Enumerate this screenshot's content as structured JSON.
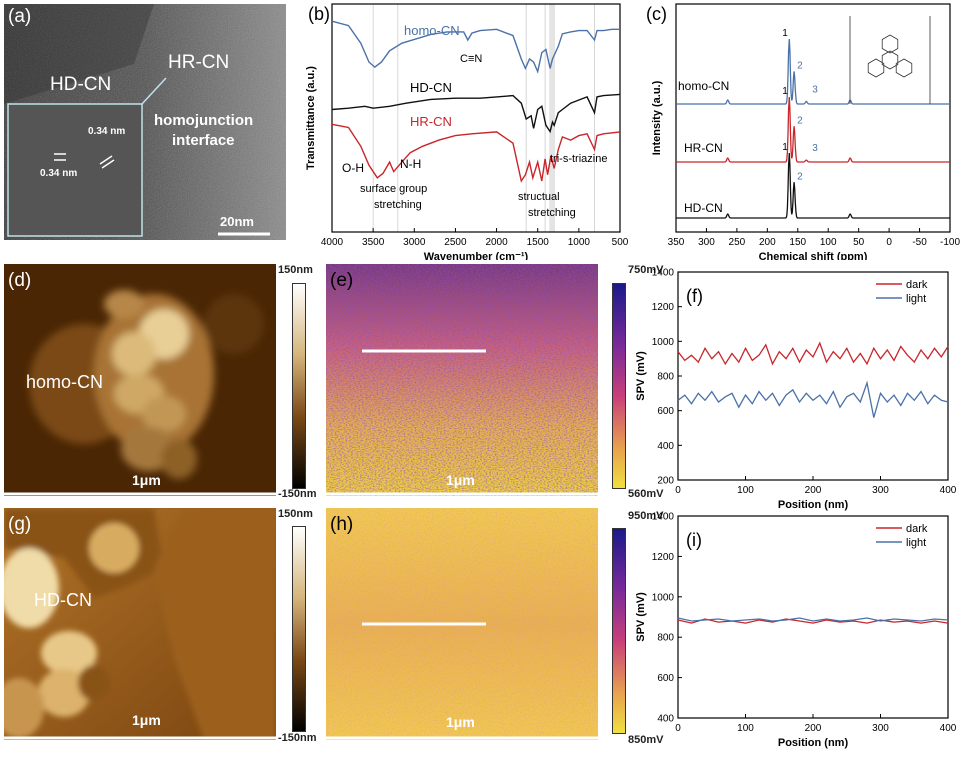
{
  "panels": {
    "a": {
      "label": "(a)",
      "texts": {
        "hd": "HD-CN",
        "hr": "HR-CN",
        "interface1": "homojunction",
        "interface2": "interface",
        "d1": "0.34 nm",
        "d2": "0.34 nm",
        "scale": "20nm"
      }
    },
    "b": {
      "label": "(b)",
      "texts": {
        "homo": "homo-CN",
        "cn": "C≡N",
        "hd": "HD-CN",
        "hr": "HR-CN",
        "oh": "O-H",
        "nh": "N-H",
        "surf1": "surface group",
        "surf2": "stretching",
        "struct1": "structual",
        "struct2": "stretching",
        "triazine": "tri-s-triazine"
      }
    },
    "c": {
      "label": "(c)",
      "texts": {
        "homo": "homo-CN",
        "hr": "HR-CN",
        "hd": "HD-CN"
      }
    },
    "d": {
      "label": "(d)",
      "sample": "homo-CN",
      "scale": "1μm",
      "cbar_top": "150nm",
      "cbar_bottom": "-150nm"
    },
    "e": {
      "label": "(e)",
      "scale": "1μm",
      "cbar_top": "750mV",
      "cbar_bottom": "560mV"
    },
    "g": {
      "label": "(g)",
      "sample": "HD-CN",
      "scale": "1μm",
      "cbar_top": "150nm",
      "cbar_bottom": "-150nm"
    },
    "h": {
      "label": "(h)",
      "scale": "1μm",
      "cbar_top": "950mV",
      "cbar_bottom": "850mV"
    }
  },
  "colors": {
    "blue": "#4a72a8",
    "red": "#c8262a",
    "black": "#111111",
    "gold": "#e6c645",
    "purple": "#3a1a8a"
  },
  "chart_data": [
    {
      "id": "b",
      "type": "line",
      "label": "(b)",
      "xlabel": "Wavenumber (cm⁻¹)",
      "ylabel": "Transmittance (a.u.)",
      "xlim": [
        4000,
        500
      ],
      "xticks": [
        4000,
        3500,
        3000,
        2500,
        2000,
        1500,
        1000,
        500
      ],
      "series": [
        {
          "name": "homo-CN",
          "color": "#4a72a8",
          "offset": 1.0,
          "x": [
            4000,
            3800,
            3650,
            3550,
            3480,
            3400,
            3300,
            3150,
            3000,
            2800,
            2600,
            2400,
            2350,
            2300,
            2200,
            2000,
            1800,
            1700,
            1650,
            1600,
            1550,
            1500,
            1450,
            1400,
            1350,
            1320,
            1250,
            1200,
            1100,
            1000,
            900,
            810,
            780,
            700,
            600,
            500
          ],
          "y": [
            0.95,
            0.88,
            0.6,
            0.3,
            0.22,
            0.3,
            0.48,
            0.6,
            0.66,
            0.74,
            0.78,
            0.78,
            0.65,
            0.76,
            0.8,
            0.82,
            0.72,
            0.35,
            0.2,
            0.35,
            0.3,
            0.15,
            0.45,
            0.5,
            0.2,
            0.35,
            0.55,
            0.75,
            0.78,
            0.8,
            0.8,
            0.65,
            0.8,
            0.8,
            0.82,
            0.82
          ]
        },
        {
          "name": "HD-CN",
          "color": "#111111",
          "offset": 0.0,
          "x": [
            4000,
            3800,
            3600,
            3500,
            3300,
            3100,
            3000,
            2800,
            2500,
            2200,
            2000,
            1800,
            1700,
            1640,
            1580,
            1550,
            1500,
            1450,
            1400,
            1350,
            1320,
            1300,
            1250,
            1200,
            1100,
            1000,
            900,
            810,
            780,
            700,
            500
          ],
          "y": [
            0.5,
            0.52,
            0.55,
            0.52,
            0.55,
            0.6,
            0.62,
            0.66,
            0.68,
            0.68,
            0.7,
            0.72,
            0.6,
            0.35,
            0.4,
            0.2,
            0.5,
            0.55,
            0.25,
            0.15,
            0.3,
            0.25,
            0.45,
            0.5,
            0.6,
            0.65,
            0.7,
            0.45,
            0.7,
            0.72,
            0.74
          ]
        },
        {
          "name": "HR-CN",
          "color": "#c8262a",
          "offset": -1.0,
          "x": [
            4000,
            3800,
            3650,
            3550,
            3450,
            3380,
            3300,
            3250,
            3150,
            3050,
            2900,
            2700,
            2500,
            2300,
            2000,
            1800,
            1700,
            1650,
            1600,
            1560,
            1500,
            1450,
            1410,
            1380,
            1340,
            1300,
            1250,
            1200,
            1100,
            1000,
            900,
            810,
            780,
            700,
            500
          ],
          "y": [
            0.9,
            0.85,
            0.55,
            0.25,
            0.05,
            0.12,
            0.3,
            0.15,
            0.3,
            0.45,
            0.55,
            0.65,
            0.72,
            0.75,
            0.78,
            0.6,
            0.0,
            0.1,
            0.3,
            0.05,
            0.3,
            0.0,
            0.35,
            0.1,
            0.4,
            0.2,
            0.5,
            0.7,
            0.65,
            0.72,
            0.75,
            0.5,
            0.72,
            0.75,
            0.78
          ]
        }
      ]
    },
    {
      "id": "c",
      "type": "line",
      "label": "(c)",
      "xlabel": "Chemical shift (ppm)",
      "ylabel": "Intensity (a.u.)",
      "xlim": [
        350,
        -100
      ],
      "xticks": [
        350,
        300,
        250,
        200,
        150,
        100,
        50,
        0,
        -50,
        -100
      ],
      "series": [
        {
          "name": "homo-CN",
          "color": "#4a72a8",
          "offset": 2.0,
          "peaks": [
            {
              "x": 265,
              "h": 0.06
            },
            {
              "x": 164,
              "h": 1.0,
              "label": "1"
            },
            {
              "x": 156,
              "h": 0.5,
              "label": "2"
            },
            {
              "x": 136,
              "h": 0.04,
              "label": "3"
            },
            {
              "x": 64,
              "h": 0.06
            }
          ]
        },
        {
          "name": "HR-CN",
          "color": "#c8262a",
          "offset": 1.0,
          "peaks": [
            {
              "x": 265,
              "h": 0.06
            },
            {
              "x": 164,
              "h": 1.0,
              "label": "1"
            },
            {
              "x": 156,
              "h": 0.55,
              "label": "2"
            },
            {
              "x": 136,
              "h": 0.03,
              "label": "3"
            },
            {
              "x": 64,
              "h": 0.06
            }
          ]
        },
        {
          "name": "HD-CN",
          "color": "#111111",
          "offset": 0.0,
          "peaks": [
            {
              "x": 265,
              "h": 0.06
            },
            {
              "x": 164,
              "h": 1.0,
              "label": "1"
            },
            {
              "x": 156,
              "h": 0.55,
              "label": "2"
            },
            {
              "x": 64,
              "h": 0.06
            }
          ]
        }
      ]
    },
    {
      "id": "f",
      "type": "line",
      "label": "(f)",
      "xlabel": "Position (nm)",
      "ylabel": "SPV (mV)",
      "xlim": [
        0,
        400
      ],
      "ylim": [
        200,
        1400
      ],
      "xticks": [
        0,
        100,
        200,
        300,
        400
      ],
      "yticks": [
        200,
        400,
        600,
        800,
        1000,
        1200,
        1400
      ],
      "legend": "top-right",
      "series": [
        {
          "name": "dark",
          "color": "#c8262a",
          "x": [
            0,
            10,
            20,
            30,
            40,
            50,
            60,
            70,
            80,
            90,
            100,
            110,
            120,
            130,
            140,
            150,
            160,
            170,
            180,
            190,
            200,
            210,
            220,
            230,
            240,
            250,
            260,
            270,
            280,
            290,
            300,
            310,
            320,
            330,
            340,
            350,
            360,
            370,
            380,
            390,
            400
          ],
          "y": [
            940,
            890,
            920,
            880,
            960,
            900,
            940,
            870,
            930,
            880,
            960,
            890,
            920,
            980,
            870,
            940,
            900,
            960,
            880,
            950,
            910,
            990,
            880,
            940,
            900,
            960,
            880,
            930,
            870,
            960,
            900,
            950,
            890,
            970,
            920,
            880,
            950,
            900,
            960,
            910,
            970
          ]
        },
        {
          "name": "light",
          "color": "#4a72a8",
          "x": [
            0,
            10,
            20,
            30,
            40,
            50,
            60,
            70,
            80,
            90,
            100,
            110,
            120,
            130,
            140,
            150,
            160,
            170,
            180,
            190,
            200,
            210,
            220,
            230,
            240,
            250,
            260,
            270,
            280,
            290,
            300,
            310,
            320,
            330,
            340,
            350,
            360,
            370,
            380,
            390,
            400
          ],
          "y": [
            660,
            690,
            640,
            700,
            660,
            710,
            650,
            680,
            700,
            620,
            690,
            640,
            710,
            660,
            700,
            630,
            690,
            720,
            650,
            700,
            660,
            690,
            640,
            710,
            620,
            680,
            700,
            650,
            760,
            560,
            700,
            650,
            690,
            630,
            700,
            660,
            710,
            640,
            690,
            660,
            650
          ]
        }
      ]
    },
    {
      "id": "i",
      "type": "line",
      "label": "(i)",
      "xlabel": "Position (nm)",
      "ylabel": "SPV (mV)",
      "xlim": [
        0,
        400
      ],
      "ylim": [
        400,
        1400
      ],
      "xticks": [
        0,
        100,
        200,
        300,
        400
      ],
      "yticks": [
        400,
        600,
        800,
        1000,
        1200,
        1400
      ],
      "legend": "top-right",
      "series": [
        {
          "name": "dark",
          "color": "#c8262a",
          "x": [
            0,
            20,
            40,
            60,
            80,
            100,
            120,
            140,
            160,
            180,
            200,
            220,
            240,
            260,
            280,
            300,
            320,
            340,
            360,
            380,
            400
          ],
          "y": [
            885,
            870,
            890,
            875,
            880,
            870,
            885,
            875,
            890,
            880,
            870,
            885,
            875,
            880,
            870,
            885,
            875,
            880,
            870,
            880,
            870
          ]
        },
        {
          "name": "light",
          "color": "#4a72a8",
          "x": [
            0,
            20,
            40,
            60,
            80,
            100,
            120,
            140,
            160,
            180,
            200,
            220,
            240,
            260,
            280,
            300,
            320,
            340,
            360,
            380,
            400
          ],
          "y": [
            895,
            880,
            885,
            890,
            880,
            885,
            890,
            880,
            885,
            895,
            880,
            890,
            880,
            885,
            895,
            880,
            890,
            885,
            880,
            890,
            885
          ]
        }
      ]
    }
  ]
}
